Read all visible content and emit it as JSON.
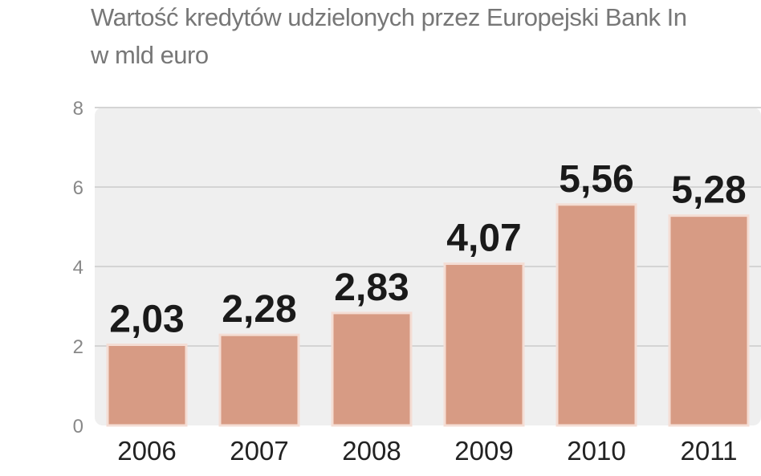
{
  "chart_data": {
    "type": "bar",
    "title": "Wartość kredytów udzielonych przez Europejski Bank In",
    "subtitle": "w mld euro",
    "categories": [
      "2006",
      "2007",
      "2008",
      "2009",
      "2010",
      "2011"
    ],
    "values": [
      2.03,
      2.28,
      2.83,
      4.07,
      5.56,
      5.28
    ],
    "value_labels": [
      "2,03",
      "2,28",
      "2,83",
      "4,07",
      "5,56",
      "5,28"
    ],
    "yticks": [
      "0",
      "2",
      "4",
      "6",
      "8"
    ],
    "ylim": [
      0,
      8
    ],
    "grid": true,
    "bar_color": "#d79b84",
    "plot_background": "#efefef"
  }
}
